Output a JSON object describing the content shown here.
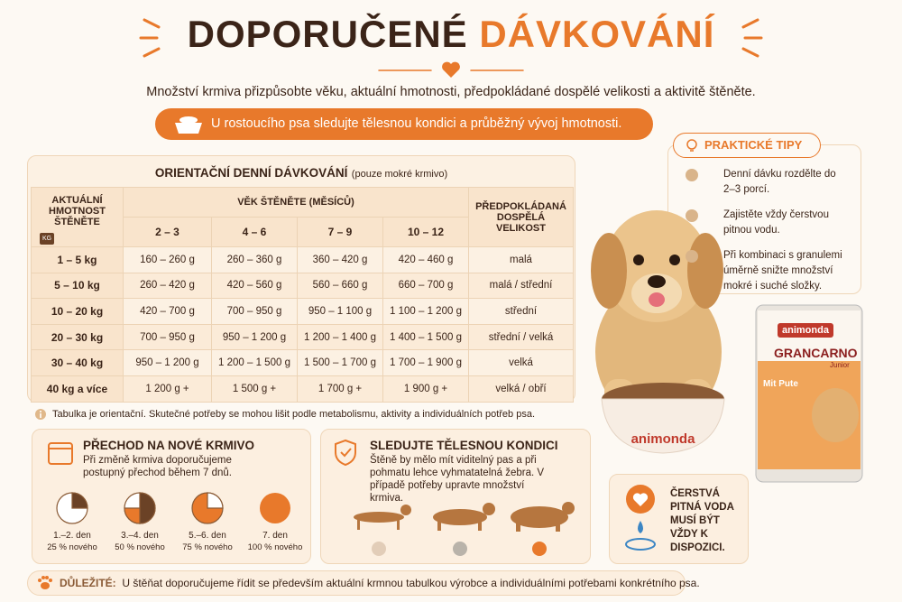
{
  "header": {
    "title_dark": "DOPORUČENÉ",
    "title_accent": "DÁVKOVÁNÍ",
    "subtitle": "Množství krmiva přizpůsobte věku, aktuální hmotnosti, předpokládané dospělé velikosti a aktivitě štěněte.",
    "banner": "U rostoucího psa sledujte tělesnou kondici a průběžný vývoj hmotnosti."
  },
  "table": {
    "title": "ORIENTAČNÍ DENNÍ DÁVKOVÁNÍ",
    "note": "(pouze mokré krmivo)",
    "weight_header": "AKTUÁLNÍ HMOTNOST ŠTĚNĚTE",
    "weight_icon": "KG",
    "age_header": "VĚK ŠTĚNĚTE (MĚSÍCŮ)",
    "ages": [
      "2 – 3",
      "4 – 6",
      "7 – 9",
      "10 – 12"
    ],
    "size_header": "PŘEDPOKLÁDANÁ DOSPĚLÁ VELIKOST",
    "rows": [
      [
        "1 – 5 kg",
        "160 – 260 g",
        "260 – 360 g",
        "360 – 420 g",
        "420 – 460 g",
        "malá"
      ],
      [
        "5 – 10 kg",
        "260 – 420 g",
        "420 – 560 g",
        "560 – 660 g",
        "660 – 700 g",
        "malá / střední"
      ],
      [
        "10 – 20 kg",
        "420 – 700 g",
        "700 – 950 g",
        "950 – 1 100 g",
        "1 100 – 1 200 g",
        "střední"
      ],
      [
        "20 – 30 kg",
        "700 – 950 g",
        "950 – 1 200 g",
        "1 200 – 1 400 g",
        "1 400 – 1 500 g",
        "střední / velká"
      ],
      [
        "30 – 40 kg",
        "950 – 1 200 g",
        "1 200 – 1 500 g",
        "1 500 – 1 700 g",
        "1 700 – 1 900 g",
        "velká"
      ],
      [
        "40 kg a více",
        "1 200 g +",
        "1 500 g +",
        "1 700 g +",
        "1 900 g +",
        "velká / obří"
      ]
    ],
    "footnote": "Tabulka je orientační. Skutečné potřeby se mohou lišit podle metabolismu, aktivity a individuálních potřeb psa."
  },
  "tips": {
    "title": "PRAKTICKÉ TIPY",
    "items": [
      "Denní dávku rozdělte do 2–3 porcí.",
      "Zajistěte vždy čerstvou pitnou vodu.",
      "Při kombinaci s granulemi úměrně snižte množství mokré i suché složky."
    ]
  },
  "product": {
    "brand": "animonda",
    "line": "GRANCARNO",
    "variant": "Junior",
    "flavor": "Mit Pute",
    "bowl_brand": "animonda"
  },
  "transition": {
    "title": "PŘECHOD NA NOVÉ KRMIVO",
    "text": "Při změně krmiva doporučujeme postupný přechod během 7 dnů.",
    "steps": [
      {
        "day": "1.–2. den",
        "share": "25 % nového"
      },
      {
        "day": "3.–4. den",
        "share": "50 % nového"
      },
      {
        "day": "5.–6. den",
        "share": "75 % nového"
      },
      {
        "day": "7. den",
        "share": "100 % nového"
      }
    ]
  },
  "condition": {
    "title": "SLEDUJTE TĚLESNOU KONDICI",
    "text": "Štěně by mělo mít viditelný pas a při pohmatu lehce vyhmatatelná žebra. V případě potřeby upravte množství krmiva."
  },
  "water": {
    "text": "ČERSTVÁ PITNÁ VODA MUSÍ BÝT VŽDY K DISPOZICI."
  },
  "footer": {
    "label": "DŮLEŽITÉ:",
    "text": "U štěňat doporučujeme řídit se především aktuální krmnou tabulkou výrobce a individuálními potřebami konkrétního psa."
  }
}
